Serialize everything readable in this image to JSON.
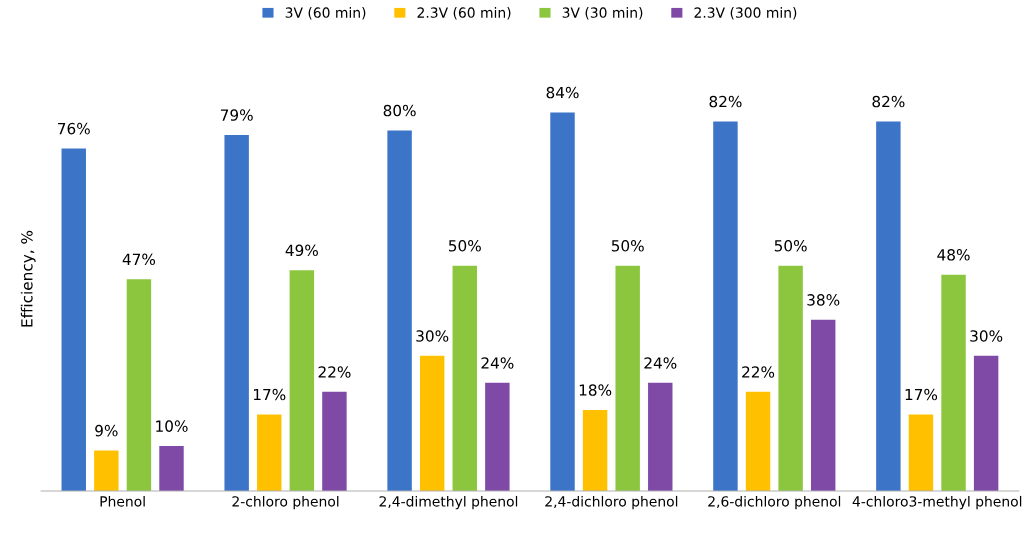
{
  "chart_data": {
    "type": "bar",
    "ylabel": "Efficiency, %",
    "categories": [
      "Phenol",
      "2-chloro phenol",
      "2,4-dimethyl phenol",
      "2,4-dichloro phenol",
      "2,6-dichloro phenol",
      "4-chloro3-methyl phenol"
    ],
    "series": [
      {
        "name": "3V (60 min)",
        "color": "#3c74c8",
        "values": [
          76,
          79,
          80,
          84,
          82,
          82
        ],
        "value_labels": [
          "76%",
          "79%",
          "80%",
          "84%",
          "82%",
          "82%"
        ]
      },
      {
        "name": "2.3V (60 min)",
        "color": "#ffc000",
        "values": [
          9,
          17,
          30,
          18,
          22,
          17
        ],
        "value_labels": [
          "9%",
          "17%",
          "30%",
          "18%",
          "22%",
          "17%"
        ]
      },
      {
        "name": "3V (30 min)",
        "color": "#8cc63e",
        "values": [
          47,
          49,
          50,
          50,
          50,
          48
        ],
        "value_labels": [
          "47%",
          "49%",
          "50%",
          "50%",
          "50%",
          "48%"
        ]
      },
      {
        "name": "2.3V (300 min)",
        "color": "#7e4aa6",
        "values": [
          10,
          22,
          24,
          24,
          38,
          30
        ],
        "value_labels": [
          "10%",
          "22%",
          "24%",
          "24%",
          "38%",
          "30%"
        ]
      }
    ],
    "legend": "top",
    "grid": false,
    "tick_labels": "x"
  }
}
